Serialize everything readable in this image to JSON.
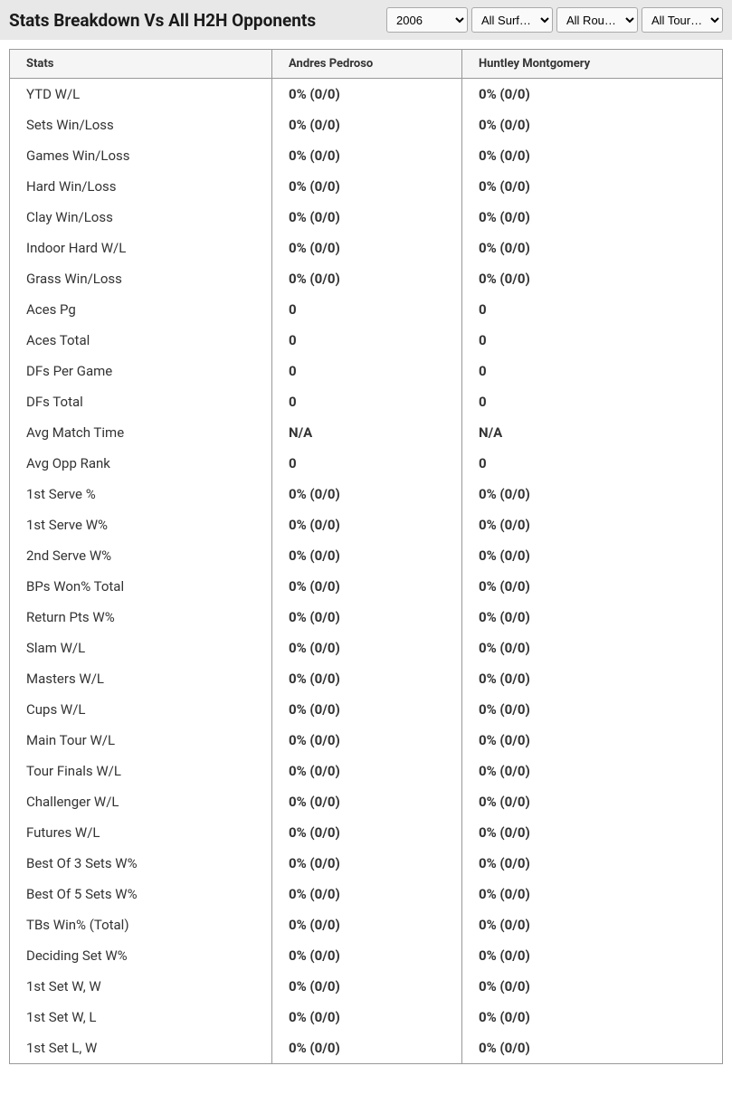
{
  "header": {
    "title": "Stats Breakdown Vs All H2H Opponents"
  },
  "filters": {
    "year": {
      "selected": "2006",
      "options": [
        "2006"
      ]
    },
    "surface": {
      "selected": "All Surf…",
      "options": [
        "All Surf…"
      ]
    },
    "round": {
      "selected": "All Rou…",
      "options": [
        "All Rou…"
      ]
    },
    "tour": {
      "selected": "All Tour…",
      "options": [
        "All Tour…"
      ]
    }
  },
  "table": {
    "columns": [
      "Stats",
      "Andres Pedroso",
      "Huntley Montgomery"
    ],
    "rows": [
      [
        "YTD W/L",
        "0% (0/0)",
        "0% (0/0)"
      ],
      [
        "Sets Win/Loss",
        "0% (0/0)",
        "0% (0/0)"
      ],
      [
        "Games Win/Loss",
        "0% (0/0)",
        "0% (0/0)"
      ],
      [
        "Hard Win/Loss",
        "0% (0/0)",
        "0% (0/0)"
      ],
      [
        "Clay Win/Loss",
        "0% (0/0)",
        "0% (0/0)"
      ],
      [
        "Indoor Hard W/L",
        "0% (0/0)",
        "0% (0/0)"
      ],
      [
        "Grass Win/Loss",
        "0% (0/0)",
        "0% (0/0)"
      ],
      [
        "Aces Pg",
        "0",
        "0"
      ],
      [
        "Aces Total",
        "0",
        "0"
      ],
      [
        "DFs Per Game",
        "0",
        "0"
      ],
      [
        "DFs Total",
        "0",
        "0"
      ],
      [
        "Avg Match Time",
        "N/A",
        "N/A"
      ],
      [
        "Avg Opp Rank",
        "0",
        "0"
      ],
      [
        "1st Serve %",
        "0% (0/0)",
        "0% (0/0)"
      ],
      [
        "1st Serve W%",
        "0% (0/0)",
        "0% (0/0)"
      ],
      [
        "2nd Serve W%",
        "0% (0/0)",
        "0% (0/0)"
      ],
      [
        "BPs Won% Total",
        "0% (0/0)",
        "0% (0/0)"
      ],
      [
        "Return Pts W%",
        "0% (0/0)",
        "0% (0/0)"
      ],
      [
        "Slam W/L",
        "0% (0/0)",
        "0% (0/0)"
      ],
      [
        "Masters W/L",
        "0% (0/0)",
        "0% (0/0)"
      ],
      [
        "Cups W/L",
        "0% (0/0)",
        "0% (0/0)"
      ],
      [
        "Main Tour W/L",
        "0% (0/0)",
        "0% (0/0)"
      ],
      [
        "Tour Finals W/L",
        "0% (0/0)",
        "0% (0/0)"
      ],
      [
        "Challenger W/L",
        "0% (0/0)",
        "0% (0/0)"
      ],
      [
        "Futures W/L",
        "0% (0/0)",
        "0% (0/0)"
      ],
      [
        "Best Of 3 Sets W%",
        "0% (0/0)",
        "0% (0/0)"
      ],
      [
        "Best Of 5 Sets W%",
        "0% (0/0)",
        "0% (0/0)"
      ],
      [
        "TBs Win% (Total)",
        "0% (0/0)",
        "0% (0/0)"
      ],
      [
        "Deciding Set W%",
        "0% (0/0)",
        "0% (0/0)"
      ],
      [
        "1st Set W, W",
        "0% (0/0)",
        "0% (0/0)"
      ],
      [
        "1st Set W, L",
        "0% (0/0)",
        "0% (0/0)"
      ],
      [
        "1st Set L, W",
        "0% (0/0)",
        "0% (0/0)"
      ]
    ]
  }
}
